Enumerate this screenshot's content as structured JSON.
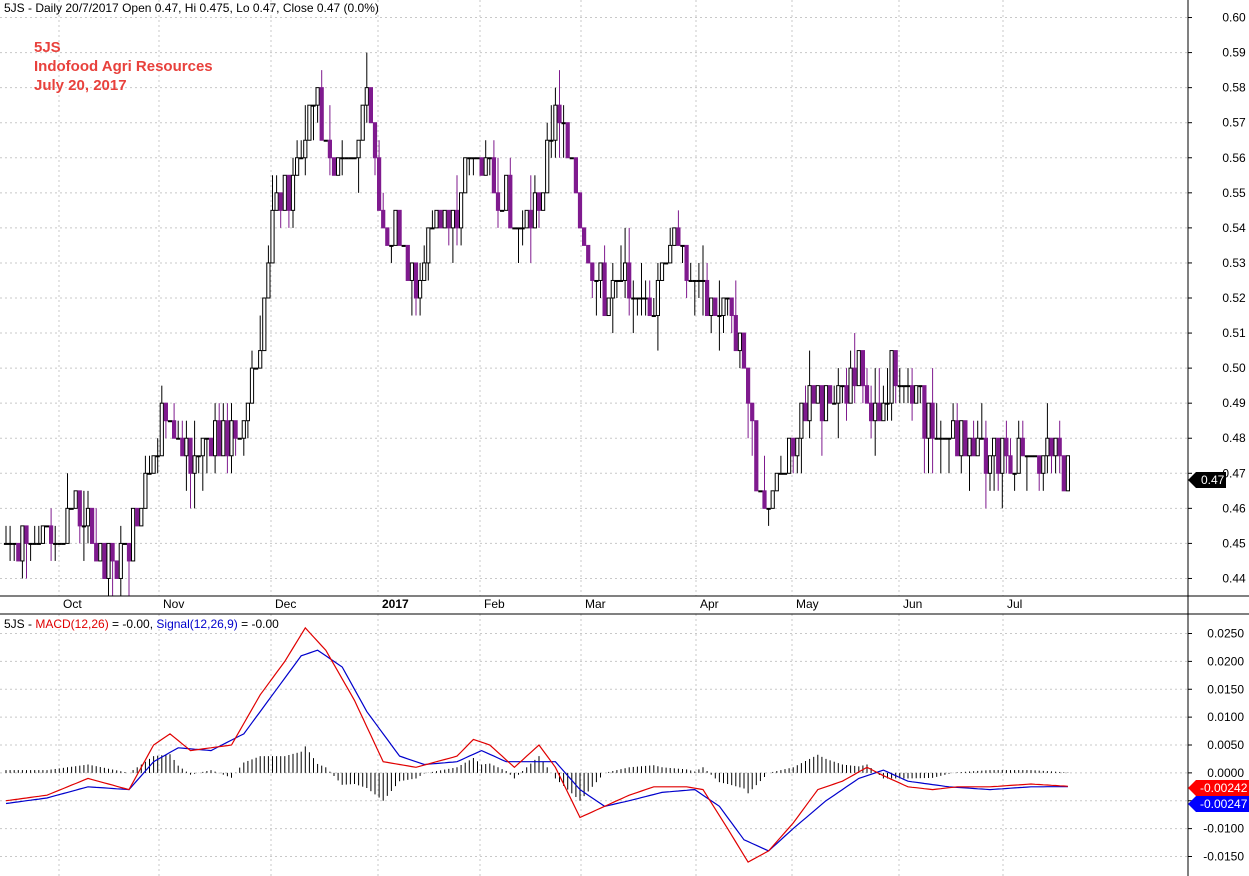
{
  "header": {
    "price": "5JS - Daily 20/7/2017 Open 0.47, Hi 0.475, Lo 0.47, Close 0.47 (0.0%)",
    "macd_prefix": "5JS - ",
    "macd_label": "MACD(12,26)",
    "macd_value": " = -0.00, ",
    "signal_label": "Signal(12,26,9)",
    "signal_value": " = -0.00"
  },
  "annotation": {
    "line1": "5JS",
    "line2": "Indofood Agri Resources",
    "line3": "July 20, 2017"
  },
  "colors": {
    "up": "#000000",
    "down": "#7f1a8e",
    "macd": "#e00000",
    "signal": "#0000cc",
    "annotation": "#e8413c",
    "grid": "#c8c8c8"
  },
  "chart_data": [
    {
      "type": "candlestick",
      "ylim": [
        0.435,
        0.605
      ],
      "y_ticks": [
        "0.60",
        "0.59",
        "0.58",
        "0.57",
        "0.56",
        "0.55",
        "0.54",
        "0.53",
        "0.52",
        "0.51",
        "0.50",
        "0.49",
        "0.48",
        "0.47",
        "0.46",
        "0.45",
        "0.44"
      ],
      "x_labels": [
        "Oct",
        "Nov",
        "Dec",
        "2017",
        "Feb",
        "Mar",
        "Apr",
        "May",
        "Jun",
        "Jul"
      ],
      "last_price": "0.47",
      "close_keypoints": [
        [
          0,
          0.45
        ],
        [
          12,
          0.455
        ],
        [
          18,
          0.46
        ],
        [
          24,
          0.44
        ],
        [
          30,
          0.45
        ],
        [
          36,
          0.48
        ],
        [
          40,
          0.49
        ],
        [
          45,
          0.47
        ],
        [
          50,
          0.48
        ],
        [
          55,
          0.48
        ],
        [
          58,
          0.49
        ],
        [
          62,
          0.51
        ],
        [
          65,
          0.545
        ],
        [
          70,
          0.55
        ],
        [
          75,
          0.58
        ],
        [
          80,
          0.56
        ],
        [
          85,
          0.56
        ],
        [
          88,
          0.575
        ],
        [
          92,
          0.54
        ],
        [
          96,
          0.54
        ],
        [
          100,
          0.52
        ],
        [
          104,
          0.545
        ],
        [
          108,
          0.54
        ],
        [
          114,
          0.56
        ],
        [
          120,
          0.55
        ],
        [
          126,
          0.54
        ],
        [
          130,
          0.545
        ],
        [
          134,
          0.575
        ],
        [
          138,
          0.56
        ],
        [
          142,
          0.53
        ],
        [
          146,
          0.52
        ],
        [
          152,
          0.525
        ],
        [
          158,
          0.52
        ],
        [
          162,
          0.54
        ],
        [
          166,
          0.525
        ],
        [
          172,
          0.52
        ],
        [
          176,
          0.515
        ],
        [
          180,
          0.5
        ],
        [
          184,
          0.46
        ],
        [
          188,
          0.465
        ],
        [
          192,
          0.48
        ],
        [
          196,
          0.49
        ],
        [
          202,
          0.49
        ],
        [
          208,
          0.5
        ],
        [
          212,
          0.485
        ],
        [
          216,
          0.5
        ],
        [
          220,
          0.49
        ],
        [
          226,
          0.485
        ],
        [
          232,
          0.48
        ],
        [
          238,
          0.475
        ],
        [
          244,
          0.475
        ],
        [
          248,
          0.48
        ],
        [
          254,
          0.475
        ],
        [
          259,
          0.47
        ]
      ]
    },
    {
      "type": "line",
      "series": [
        {
          "name": "MACD(12,26)",
          "keypoints": [
            [
              0,
              -0.005
            ],
            [
              10,
              -0.004
            ],
            [
              20,
              -0.001
            ],
            [
              30,
              -0.003
            ],
            [
              36,
              0.005
            ],
            [
              40,
              0.007
            ],
            [
              45,
              0.004
            ],
            [
              55,
              0.005
            ],
            [
              62,
              0.014
            ],
            [
              68,
              0.02
            ],
            [
              73,
              0.026
            ],
            [
              78,
              0.022
            ],
            [
              85,
              0.013
            ],
            [
              92,
              0.002
            ],
            [
              100,
              0.001
            ],
            [
              110,
              0.003
            ],
            [
              114,
              0.006
            ],
            [
              118,
              0.005
            ],
            [
              124,
              0.001
            ],
            [
              130,
              0.005
            ],
            [
              134,
              0.001
            ],
            [
              140,
              -0.008
            ],
            [
              146,
              -0.006
            ],
            [
              152,
              -0.004
            ],
            [
              158,
              -0.0025
            ],
            [
              166,
              -0.0025
            ],
            [
              170,
              -0.003
            ],
            [
              176,
              -0.01
            ],
            [
              181,
              -0.016
            ],
            [
              186,
              -0.014
            ],
            [
              192,
              -0.009
            ],
            [
              198,
              -0.003
            ],
            [
              204,
              -0.0015
            ],
            [
              210,
              0.001
            ],
            [
              214,
              -0.0005
            ],
            [
              220,
              -0.0025
            ],
            [
              226,
              -0.003
            ],
            [
              232,
              -0.0025
            ],
            [
              240,
              -0.0025
            ],
            [
              250,
              -0.002
            ],
            [
              259,
              -0.0024
            ]
          ]
        },
        {
          "name": "Signal(12,26,9)",
          "keypoints": [
            [
              0,
              -0.0055
            ],
            [
              10,
              -0.0045
            ],
            [
              20,
              -0.0025
            ],
            [
              30,
              -0.003
            ],
            [
              36,
              0.002
            ],
            [
              42,
              0.0045
            ],
            [
              50,
              0.004
            ],
            [
              58,
              0.007
            ],
            [
              66,
              0.015
            ],
            [
              72,
              0.021
            ],
            [
              76,
              0.022
            ],
            [
              82,
              0.019
            ],
            [
              88,
              0.011
            ],
            [
              96,
              0.003
            ],
            [
              102,
              0.0015
            ],
            [
              110,
              0.002
            ],
            [
              116,
              0.004
            ],
            [
              122,
              0.002
            ],
            [
              128,
              0.002
            ],
            [
              134,
              0.002
            ],
            [
              140,
              -0.003
            ],
            [
              146,
              -0.006
            ],
            [
              152,
              -0.005
            ],
            [
              160,
              -0.0035
            ],
            [
              168,
              -0.003
            ],
            [
              174,
              -0.006
            ],
            [
              180,
              -0.012
            ],
            [
              186,
              -0.014
            ],
            [
              192,
              -0.01
            ],
            [
              200,
              -0.005
            ],
            [
              208,
              -0.001
            ],
            [
              214,
              0.0005
            ],
            [
              220,
              -0.0015
            ],
            [
              230,
              -0.0025
            ],
            [
              240,
              -0.003
            ],
            [
              250,
              -0.0025
            ],
            [
              259,
              -0.00247
            ]
          ]
        }
      ],
      "ylim": [
        -0.0185,
        0.0285
      ],
      "y_ticks": [
        "0.0250",
        "0.0200",
        "0.0150",
        "0.0100",
        "0.0050",
        "0.0000",
        "-0.0050",
        "-0.0100",
        "-0.0150"
      ],
      "macd_last": "-0.00242",
      "signal_last": "-0.00247"
    }
  ]
}
